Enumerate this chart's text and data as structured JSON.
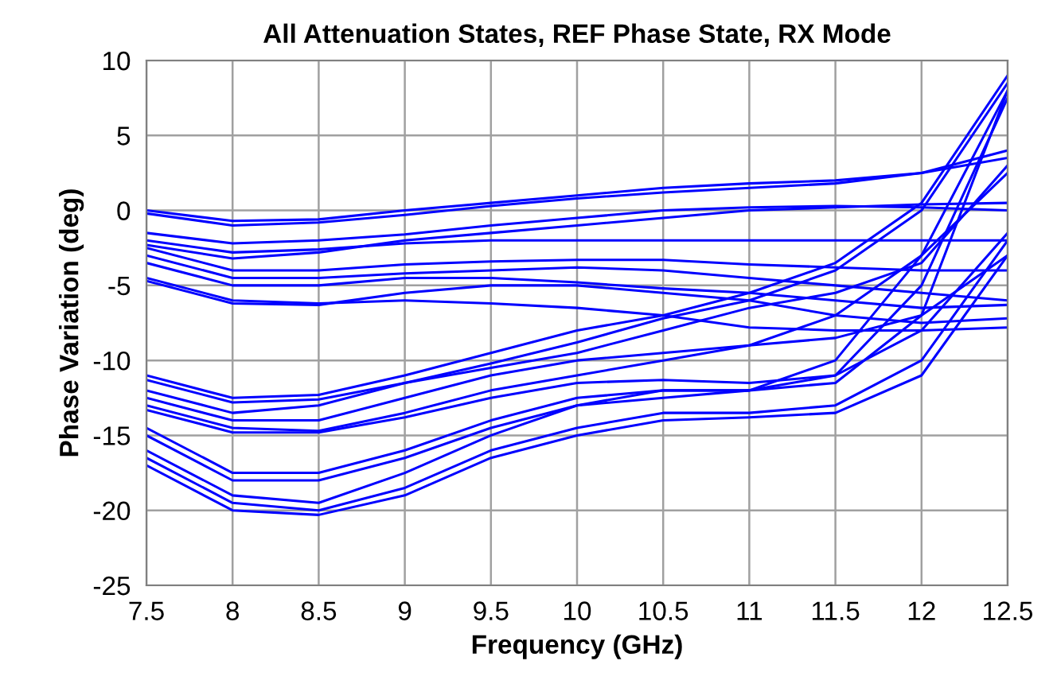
{
  "chart_data": {
    "type": "line",
    "title": "All Attenuation States, REF Phase State, RX Mode",
    "xlabel": "Frequency (GHz)",
    "ylabel": "Phase Variation (deg)",
    "x": [
      7.5,
      8,
      8.5,
      9,
      9.5,
      10,
      10.5,
      11,
      11.5,
      12,
      12.5
    ],
    "xlim": [
      7.5,
      12.5
    ],
    "xticks": [
      7.5,
      8,
      8.5,
      9,
      9.5,
      10,
      10.5,
      11,
      11.5,
      12,
      12.5
    ],
    "ylim": [
      -25,
      10
    ],
    "yticks": [
      -25,
      -20,
      -15,
      -10,
      -5,
      0,
      5,
      10
    ],
    "grid": true,
    "marker": "none",
    "line_style": "solid",
    "series": [
      {
        "color": "#0000ff",
        "values": [
          0,
          -0.7,
          -0.6,
          0,
          0.5,
          1,
          1.5,
          1.8,
          2,
          2.5,
          4
        ]
      },
      {
        "color": "#0000ff",
        "values": [
          -0.2,
          -1,
          -0.8,
          -0.3,
          0.3,
          0.8,
          1.2,
          1.5,
          1.8,
          2.5,
          3.5
        ]
      },
      {
        "color": "#0000ff",
        "values": [
          -1.5,
          -2.2,
          -2,
          -1.6,
          -1,
          -0.5,
          0,
          0.2,
          0.3,
          0.2,
          0
        ]
      },
      {
        "color": "#0000ff",
        "values": [
          -2,
          -2.8,
          -2.6,
          -2.2,
          -2,
          -2,
          -2,
          -2,
          -2,
          -2,
          -2
        ]
      },
      {
        "color": "#0000ff",
        "values": [
          -2.3,
          -3.2,
          -2.8,
          -2,
          -1.5,
          -1,
          -0.5,
          0,
          0.2,
          0.4,
          0.5
        ]
      },
      {
        "color": "#0000ff",
        "values": [
          -2.5,
          -4,
          -4,
          -3.6,
          -3.4,
          -3.3,
          -3.3,
          -3.6,
          -3.8,
          -4,
          -4
        ]
      },
      {
        "color": "#0000ff",
        "values": [
          -3,
          -4.5,
          -4.5,
          -4.2,
          -4,
          -3.8,
          -4,
          -4.5,
          -5,
          -5.5,
          -6
        ]
      },
      {
        "color": "#0000ff",
        "values": [
          -3.5,
          -5,
          -5,
          -4.5,
          -4.5,
          -4.8,
          -5.2,
          -5.5,
          -6,
          -6.5,
          -6.3
        ]
      },
      {
        "color": "#0000ff",
        "values": [
          -4.5,
          -6,
          -6.2,
          -6,
          -6.2,
          -6.5,
          -7,
          -7.8,
          -8,
          -8,
          -7.8
        ]
      },
      {
        "color": "#0000ff",
        "values": [
          -4.7,
          -6.2,
          -6.3,
          -5.5,
          -5,
          -5,
          -5.5,
          -6,
          -7,
          -7.5,
          -7.2
        ]
      },
      {
        "color": "#0000ff",
        "values": [
          -11,
          -12.5,
          -12.3,
          -11,
          -9.5,
          -8,
          -7,
          -5.5,
          -3.5,
          0.5,
          9
        ]
      },
      {
        "color": "#0000ff",
        "values": [
          -11.3,
          -12.8,
          -12.6,
          -11.5,
          -10.2,
          -8.8,
          -7.2,
          -6,
          -4,
          0,
          8.5
        ]
      },
      {
        "color": "#0000ff",
        "values": [
          -12,
          -13.5,
          -13,
          -11.5,
          -10.5,
          -9.5,
          -8,
          -6.5,
          -5.5,
          -3.5,
          3
        ]
      },
      {
        "color": "#0000ff",
        "values": [
          -12.5,
          -14,
          -14,
          -12.5,
          -11,
          -10,
          -9.5,
          -9,
          -7,
          -3,
          2.5
        ]
      },
      {
        "color": "#0000ff",
        "values": [
          -13,
          -14.5,
          -14.7,
          -13.5,
          -12,
          -11,
          -10,
          -9,
          -8.5,
          -7,
          -3
        ]
      },
      {
        "color": "#0000ff",
        "values": [
          -13.3,
          -14.8,
          -14.8,
          -13.8,
          -12.5,
          -11.5,
          -11.3,
          -11.5,
          -11,
          -8,
          -1.5
        ]
      },
      {
        "color": "#0000ff",
        "values": [
          -14.5,
          -17.5,
          -17.5,
          -16,
          -14,
          -12.5,
          -12,
          -12,
          -11.5,
          -7,
          8
        ]
      },
      {
        "color": "#0000ff",
        "values": [
          -15,
          -18,
          -18,
          -16.5,
          -14.5,
          -13,
          -12,
          -12,
          -11,
          -5,
          7.5
        ]
      },
      {
        "color": "#0000ff",
        "values": [
          -16,
          -19,
          -19.5,
          -17.5,
          -15,
          -13,
          -12.5,
          -12,
          -10,
          -3,
          8
        ]
      },
      {
        "color": "#0000ff",
        "values": [
          -16.5,
          -19.5,
          -20,
          -18.5,
          -16,
          -14.5,
          -13.5,
          -13.5,
          -13,
          -10,
          -2
        ]
      },
      {
        "color": "#0000ff",
        "values": [
          -17,
          -20,
          -20.3,
          -19,
          -16.5,
          -15,
          -14,
          -13.8,
          -13.5,
          -11,
          -3
        ]
      }
    ]
  }
}
